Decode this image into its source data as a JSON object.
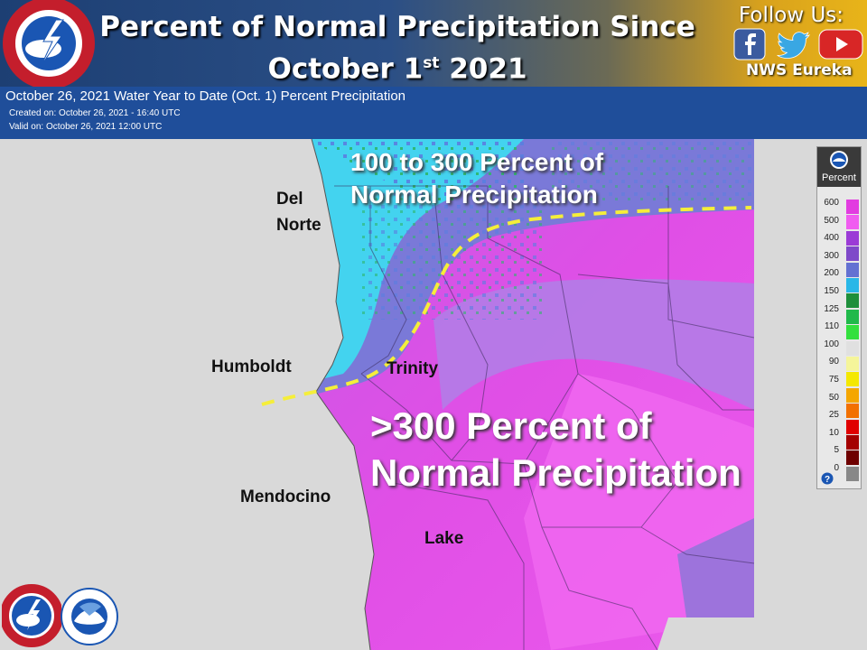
{
  "header": {
    "title_line1": "Percent of Normal Precipitation Since",
    "title_line2_main": "October 1",
    "title_line2_sup": "st",
    "title_line2_tail": " 2021",
    "follow": "Follow Us:",
    "handle": "NWS Eureka",
    "social_icons": [
      "facebook-icon",
      "twitter-icon",
      "youtube-icon"
    ],
    "nws_logo_text": "NATIONAL WEATHER SERVICE"
  },
  "subheader": {
    "title": "October 26, 2021 Water Year to Date (Oct. 1) Percent Precipitation",
    "created": "Created on: October 26, 2021 - 16:40 UTC",
    "valid": "Valid on: October 26, 2021 12:00 UTC"
  },
  "map": {
    "annotation_north_line1": "100 to 300 Percent of",
    "annotation_north_line2": "Normal Precipitation",
    "annotation_south_line1": ">300 Percent of",
    "annotation_south_line2": "Normal Precipitation",
    "counties": {
      "del_norte_1": "Del",
      "del_norte_2": "Norte",
      "humboldt": "Humboldt",
      "trinity": "Trinity",
      "mendocino": "Mendocino",
      "lake": "Lake"
    },
    "divider_color": "#f5ee3a"
  },
  "legend": {
    "title": "Percent",
    "ticks": [
      "600",
      "500",
      "400",
      "300",
      "200",
      "150",
      "125",
      "110",
      "100",
      "90",
      "75",
      "50",
      "25",
      "10",
      "5",
      "0"
    ],
    "colors": [
      "#e23ce0",
      "#f05cf0",
      "#9b3bd6",
      "#7f49c9",
      "#6471d2",
      "#29b7e7",
      "#1e8f3b",
      "#20b94a",
      "#33e03e",
      "#e0e0e0",
      "#f5f59a",
      "#f4e800",
      "#f4a600",
      "#f27000",
      "#e00000",
      "#a40000",
      "#6e0000",
      "#888888"
    ],
    "help_icon": "question-icon"
  },
  "footer": {
    "logos": [
      "nws-logo",
      "noaa-logo"
    ]
  }
}
